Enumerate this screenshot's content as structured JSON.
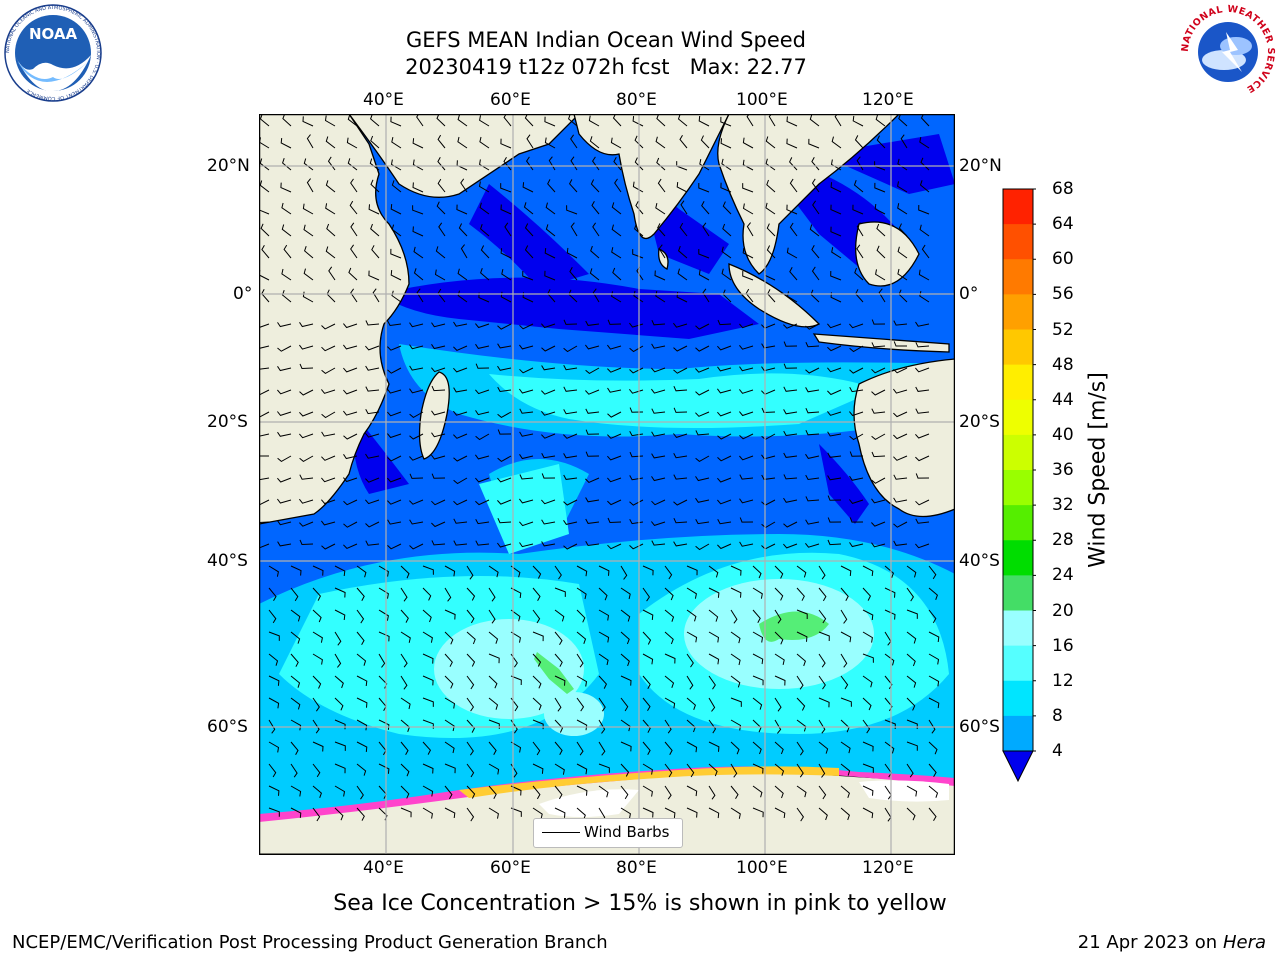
{
  "header": {
    "title_line1": "GEFS MEAN Indian Ocean Wind Speed",
    "title_line2": "20230419 t12z 072h fcst   Max: 22.77"
  },
  "logos": {
    "noaa_text": "NOAA",
    "noaa_ring_text": "NATIONAL OCEANIC AND ATMOSPHERIC ADMINISTRATION · U.S. DEPARTMENT OF COMMERCE",
    "nws_ring_text": "NATIONAL WEATHER SERVICE"
  },
  "map": {
    "lon_labels_top": [
      "40°E",
      "60°E",
      "80°E",
      "100°E",
      "120°E"
    ],
    "lon_labels_bottom": [
      "40°E",
      "60°E",
      "80°E",
      "100°E",
      "120°E"
    ],
    "lat_labels_left": [
      "20°N",
      "0°",
      "20°S",
      "40°S",
      "60°S"
    ],
    "lat_labels_right": [
      "20°N",
      "0°",
      "20°S",
      "40°S",
      "60°S"
    ],
    "legend_label": "Wind Barbs",
    "colors": {
      "land": "#eeeedd",
      "ocean_low": "#0000ee",
      "ocean_4_8": "#0066ff",
      "ocean_8_12": "#00ccff",
      "ocean_12_16": "#33ffff",
      "ocean_16_20": "#99ffff",
      "ocean_20_24": "#55ee77",
      "sea_ice_low": "#ff44cc",
      "sea_ice_high": "#ffcc33"
    }
  },
  "colorbar": {
    "label": "Wind Speed [m/s]",
    "ticks": [
      "68",
      "64",
      "60",
      "56",
      "52",
      "48",
      "44",
      "40",
      "36",
      "32",
      "28",
      "24",
      "20",
      "16",
      "12",
      "8",
      "4"
    ],
    "colors_top_to_bottom": [
      "#ff0000",
      "#ff2200",
      "#ff5000",
      "#ff7a00",
      "#ffa000",
      "#ffc800",
      "#ffee00",
      "#eeff00",
      "#ccff00",
      "#99ff00",
      "#55ee00",
      "#00dd00",
      "#44dd66",
      "#99ffff",
      "#55ffff",
      "#00e5ff",
      "#00aaff",
      "#0066ff"
    ],
    "extend_color": "#0000ee"
  },
  "caption": "Sea Ice Concentration > 15% is shown in pink to yellow",
  "footer": {
    "left": "NCEP/EMC/Verification Post Processing Product Generation Branch",
    "right_date": "21 Apr 2023 on ",
    "right_machine": "Hera"
  }
}
